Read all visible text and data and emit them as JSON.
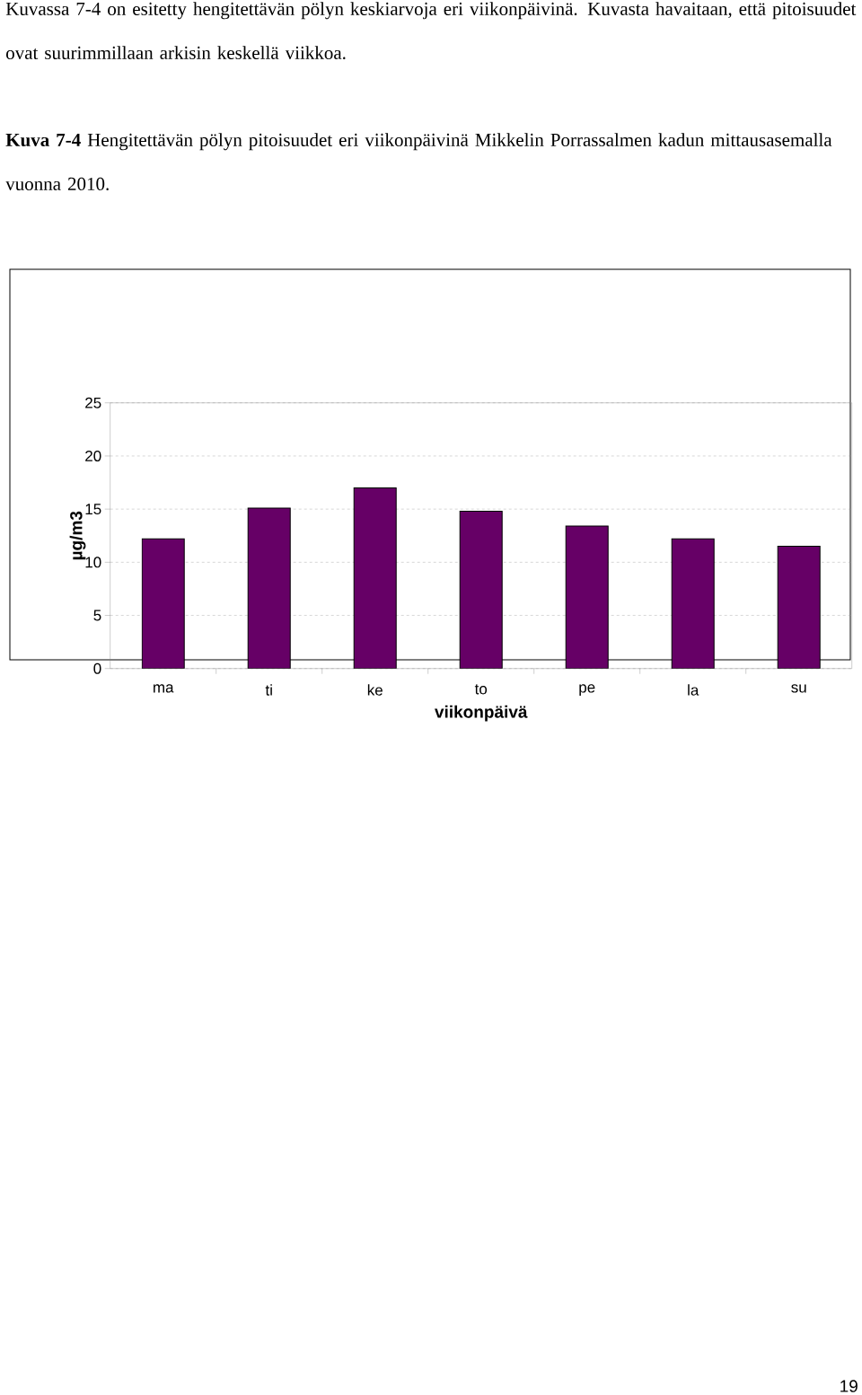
{
  "chart_data": {
    "type": "bar",
    "title": "**Kuva 7-4** Hengitettävän pölyn pitoisuudet eri viikonpäivinä Mikkelin Porrassalmen kadun mittausasemalla vuonna 2010.",
    "annotations": [
      "Kuvassa 7-4 on esitetty hengitettävän pölyn keskiarvoja eri viikonpäivinä. Kuvasta havaitaan, että pitoisuudet ovat suurimmillaan arkisin keskellä viikkoa.",
      "19"
    ],
    "categories": [
      "ma",
      "ti",
      "ke",
      "to",
      "pe",
      "la",
      "su"
    ],
    "values": [
      12.2,
      15.1,
      17.0,
      14.8,
      13.4,
      12.2,
      11.5
    ],
    "color": "#660066",
    "xlabel": "viikonpäivä",
    "ylabel": "µg/m3",
    "ylim": [
      0,
      25
    ],
    "yticks": [
      0,
      5,
      10,
      15,
      20,
      25
    ],
    "grid": "y"
  }
}
